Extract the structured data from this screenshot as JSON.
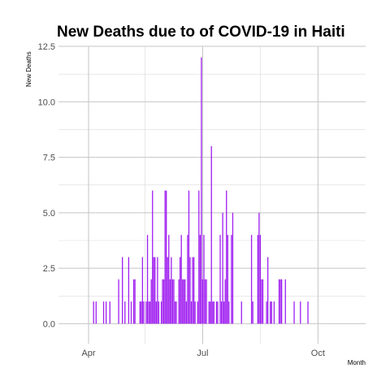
{
  "chart_data": {
    "type": "bar",
    "title": "New Deaths due to of COVID-19 in Haiti",
    "xlabel": "Month",
    "ylabel": "New Deaths",
    "color": "#a020f0",
    "grid": true,
    "ylim": [
      -0.9,
      12.5
    ],
    "xlim": [
      "2020-03-08",
      "2020-11-08"
    ],
    "y_ticks": [
      {
        "value": 0,
        "label": "0.0"
      },
      {
        "value": 2.5,
        "label": "2.5"
      },
      {
        "value": 5,
        "label": "5.0"
      },
      {
        "value": 7.5,
        "label": "7.5"
      },
      {
        "value": 10,
        "label": "10.0"
      },
      {
        "value": 12.5,
        "label": "12.5"
      }
    ],
    "x_ticks": [
      {
        "value": "2020-04-01",
        "label": "Apr"
      },
      {
        "value": "2020-07-01",
        "label": "Jul"
      },
      {
        "value": "2020-10-01",
        "label": "Oct"
      }
    ],
    "x_minor_ticks": [
      "2020-02-15",
      "2020-05-16",
      "2020-08-16",
      "2020-11-15"
    ],
    "points": [
      [
        "2020-04-05",
        1
      ],
      [
        "2020-04-07",
        1
      ],
      [
        "2020-04-13",
        1
      ],
      [
        "2020-04-15",
        1
      ],
      [
        "2020-04-18",
        1
      ],
      [
        "2020-04-25",
        2
      ],
      [
        "2020-04-28",
        3
      ],
      [
        "2020-04-30",
        1
      ],
      [
        "2020-05-03",
        3
      ],
      [
        "2020-05-05",
        1
      ],
      [
        "2020-05-07",
        2
      ],
      [
        "2020-05-08",
        2
      ],
      [
        "2020-05-12",
        1
      ],
      [
        "2020-05-13",
        1
      ],
      [
        "2020-05-14",
        3
      ],
      [
        "2020-05-15",
        1
      ],
      [
        "2020-05-17",
        1
      ],
      [
        "2020-05-18",
        4
      ],
      [
        "2020-05-19",
        1
      ],
      [
        "2020-05-20",
        1
      ],
      [
        "2020-05-21",
        2
      ],
      [
        "2020-05-22",
        6
      ],
      [
        "2020-05-23",
        3
      ],
      [
        "2020-05-24",
        3
      ],
      [
        "2020-05-25",
        1
      ],
      [
        "2020-05-26",
        3
      ],
      [
        "2020-05-27",
        1
      ],
      [
        "2020-05-29",
        1
      ],
      [
        "2020-05-30",
        2
      ],
      [
        "2020-05-31",
        2
      ],
      [
        "2020-06-01",
        6
      ],
      [
        "2020-06-02",
        6
      ],
      [
        "2020-06-03",
        3
      ],
      [
        "2020-06-04",
        4
      ],
      [
        "2020-06-05",
        2
      ],
      [
        "2020-06-06",
        3
      ],
      [
        "2020-06-07",
        2
      ],
      [
        "2020-06-08",
        2
      ],
      [
        "2020-06-09",
        1
      ],
      [
        "2020-06-10",
        1
      ],
      [
        "2020-06-12",
        2
      ],
      [
        "2020-06-13",
        3
      ],
      [
        "2020-06-14",
        4
      ],
      [
        "2020-06-15",
        2
      ],
      [
        "2020-06-16",
        2
      ],
      [
        "2020-06-17",
        2
      ],
      [
        "2020-06-18",
        1
      ],
      [
        "2020-06-19",
        4
      ],
      [
        "2020-06-20",
        6
      ],
      [
        "2020-06-21",
        3
      ],
      [
        "2020-06-22",
        1
      ],
      [
        "2020-06-23",
        3
      ],
      [
        "2020-06-24",
        3
      ],
      [
        "2020-06-25",
        1
      ],
      [
        "2020-06-27",
        1
      ],
      [
        "2020-06-28",
        6
      ],
      [
        "2020-06-29",
        4
      ],
      [
        "2020-06-30",
        12
      ],
      [
        "2020-07-01",
        2
      ],
      [
        "2020-07-02",
        4
      ],
      [
        "2020-07-03",
        2
      ],
      [
        "2020-07-04",
        2
      ],
      [
        "2020-07-06",
        1
      ],
      [
        "2020-07-07",
        1
      ],
      [
        "2020-07-08",
        8
      ],
      [
        "2020-07-09",
        1
      ],
      [
        "2020-07-10",
        1
      ],
      [
        "2020-07-12",
        1
      ],
      [
        "2020-07-13",
        1
      ],
      [
        "2020-07-15",
        4
      ],
      [
        "2020-07-16",
        1
      ],
      [
        "2020-07-17",
        5
      ],
      [
        "2020-07-18",
        1
      ],
      [
        "2020-07-19",
        2
      ],
      [
        "2020-07-20",
        6
      ],
      [
        "2020-07-21",
        4
      ],
      [
        "2020-07-22",
        1
      ],
      [
        "2020-07-24",
        4
      ],
      [
        "2020-07-25",
        5
      ],
      [
        "2020-08-01",
        1
      ],
      [
        "2020-08-09",
        4
      ],
      [
        "2020-08-10",
        1
      ],
      [
        "2020-08-14",
        4
      ],
      [
        "2020-08-15",
        5
      ],
      [
        "2020-08-16",
        4
      ],
      [
        "2020-08-17",
        2
      ],
      [
        "2020-08-18",
        2
      ],
      [
        "2020-08-21",
        1
      ],
      [
        "2020-08-22",
        3
      ],
      [
        "2020-08-24",
        1
      ],
      [
        "2020-08-25",
        1
      ],
      [
        "2020-08-27",
        1
      ],
      [
        "2020-08-31",
        2
      ],
      [
        "2020-09-01",
        2
      ],
      [
        "2020-09-02",
        2
      ],
      [
        "2020-09-05",
        2
      ],
      [
        "2020-09-12",
        1
      ],
      [
        "2020-09-17",
        1
      ],
      [
        "2020-09-23",
        1
      ]
    ]
  }
}
